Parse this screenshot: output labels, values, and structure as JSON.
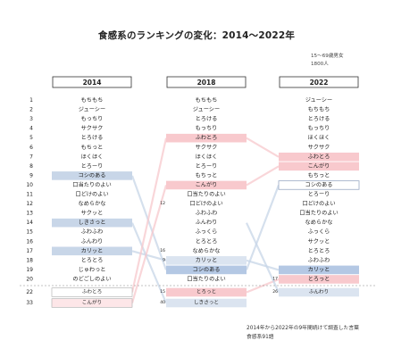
{
  "title": "食感系のランキングの変化：2014～2022年",
  "respondents": "15～69歳男女",
  "sample_size": "1800人",
  "footnote_line1": "2014年から2022年の9年間続けて調査した言葉",
  "footnote_line2": "食感系91語",
  "colors": {
    "down_red": "#f8c9cd",
    "up_blue": "#c8d6e8",
    "strong_blue": "#b4c8e4",
    "pale_blue": "#dbe4f0",
    "grid": "#dddddd"
  },
  "chart_data": {
    "type": "table",
    "title": "食感系のランキングの変化：2014～2022年",
    "years": [
      "2014",
      "2018",
      "2022"
    ],
    "row_ranks": [
      1,
      2,
      3,
      4,
      5,
      6,
      7,
      8,
      9,
      10,
      11,
      12,
      13,
      14,
      15,
      16,
      17,
      18,
      19,
      20
    ],
    "extra_row_ranks": [
      22,
      33
    ],
    "columns": [
      {
        "year": "2014",
        "words": [
          "もちもち",
          "ジューシー",
          "もっちり",
          "サクサク",
          "とろける",
          "もちっと",
          "ほくほく",
          "とろーり",
          "コシのある",
          "口当たりのよい",
          "口どけのよい",
          "なめらかな",
          "サクッと",
          "しきさっと",
          "ふわふわ",
          "ふんわり",
          "カリッと",
          "とろとろ",
          "じゅわっと",
          "のどごしのよい"
        ],
        "extra": [
          {
            "rank": "",
            "word": "ふわとろ"
          },
          {
            "rank": "",
            "word": "こんがり"
          }
        ],
        "highlights": [
          {
            "index": 8,
            "style": "blue"
          },
          {
            "index": 13,
            "style": "blue"
          },
          {
            "index": 16,
            "style": "blue"
          }
        ]
      },
      {
        "year": "2018",
        "words": [
          "もちもち",
          "ジューシー",
          "とろける",
          "もっちり",
          "ふわとろ",
          "サクサク",
          "ほくほく",
          "とろーり",
          "もちっと",
          "こんがり",
          "口当たりのよい",
          "口どけのよい",
          "ふわふわ",
          "ふんわり",
          "ふっくら",
          "とろとろ",
          "なめらかな",
          "カリッと",
          "コシのある",
          "口当たりのよい"
        ],
        "side_ranks": {
          "11": "12",
          "16": "16",
          "17": "9"
        },
        "extra": [
          {
            "rank": "15",
            "word": "とろっと"
          },
          {
            "rank": "40",
            "word": "しきさっと"
          }
        ],
        "highlights": [
          {
            "index": 4,
            "style": "red"
          },
          {
            "index": 9,
            "style": "red"
          },
          {
            "index": 17,
            "style": "pale"
          },
          {
            "index": 18,
            "style": "strong"
          },
          {
            "extra": 0,
            "style": "red"
          },
          {
            "extra": 1,
            "style": "pale"
          }
        ]
      },
      {
        "year": "2022",
        "words": [
          "ジューシー",
          "もちもち",
          "とろける",
          "もっちり",
          "ほくほく",
          "サクサク",
          "ふわとろ",
          "こんがり",
          "もちっと",
          "コシのある",
          "とろーり",
          "口どけのよい",
          "口当たりのよい",
          "なめらかな",
          "ふっくら",
          "サクッと",
          "とろとろ",
          "ふわふわ",
          "カリッと",
          "とろっと"
        ],
        "side_ranks": {
          "19": "17"
        },
        "extra": [
          {
            "rank": "26",
            "word": "ふんわり"
          }
        ],
        "highlights": [
          {
            "index": 6,
            "style": "red"
          },
          {
            "index": 7,
            "style": "red"
          },
          {
            "index": 9,
            "style": "outline"
          },
          {
            "index": 18,
            "style": "strong"
          },
          {
            "index": 19,
            "style": "red"
          },
          {
            "extra": 0,
            "style": "pale"
          }
        ]
      }
    ]
  }
}
